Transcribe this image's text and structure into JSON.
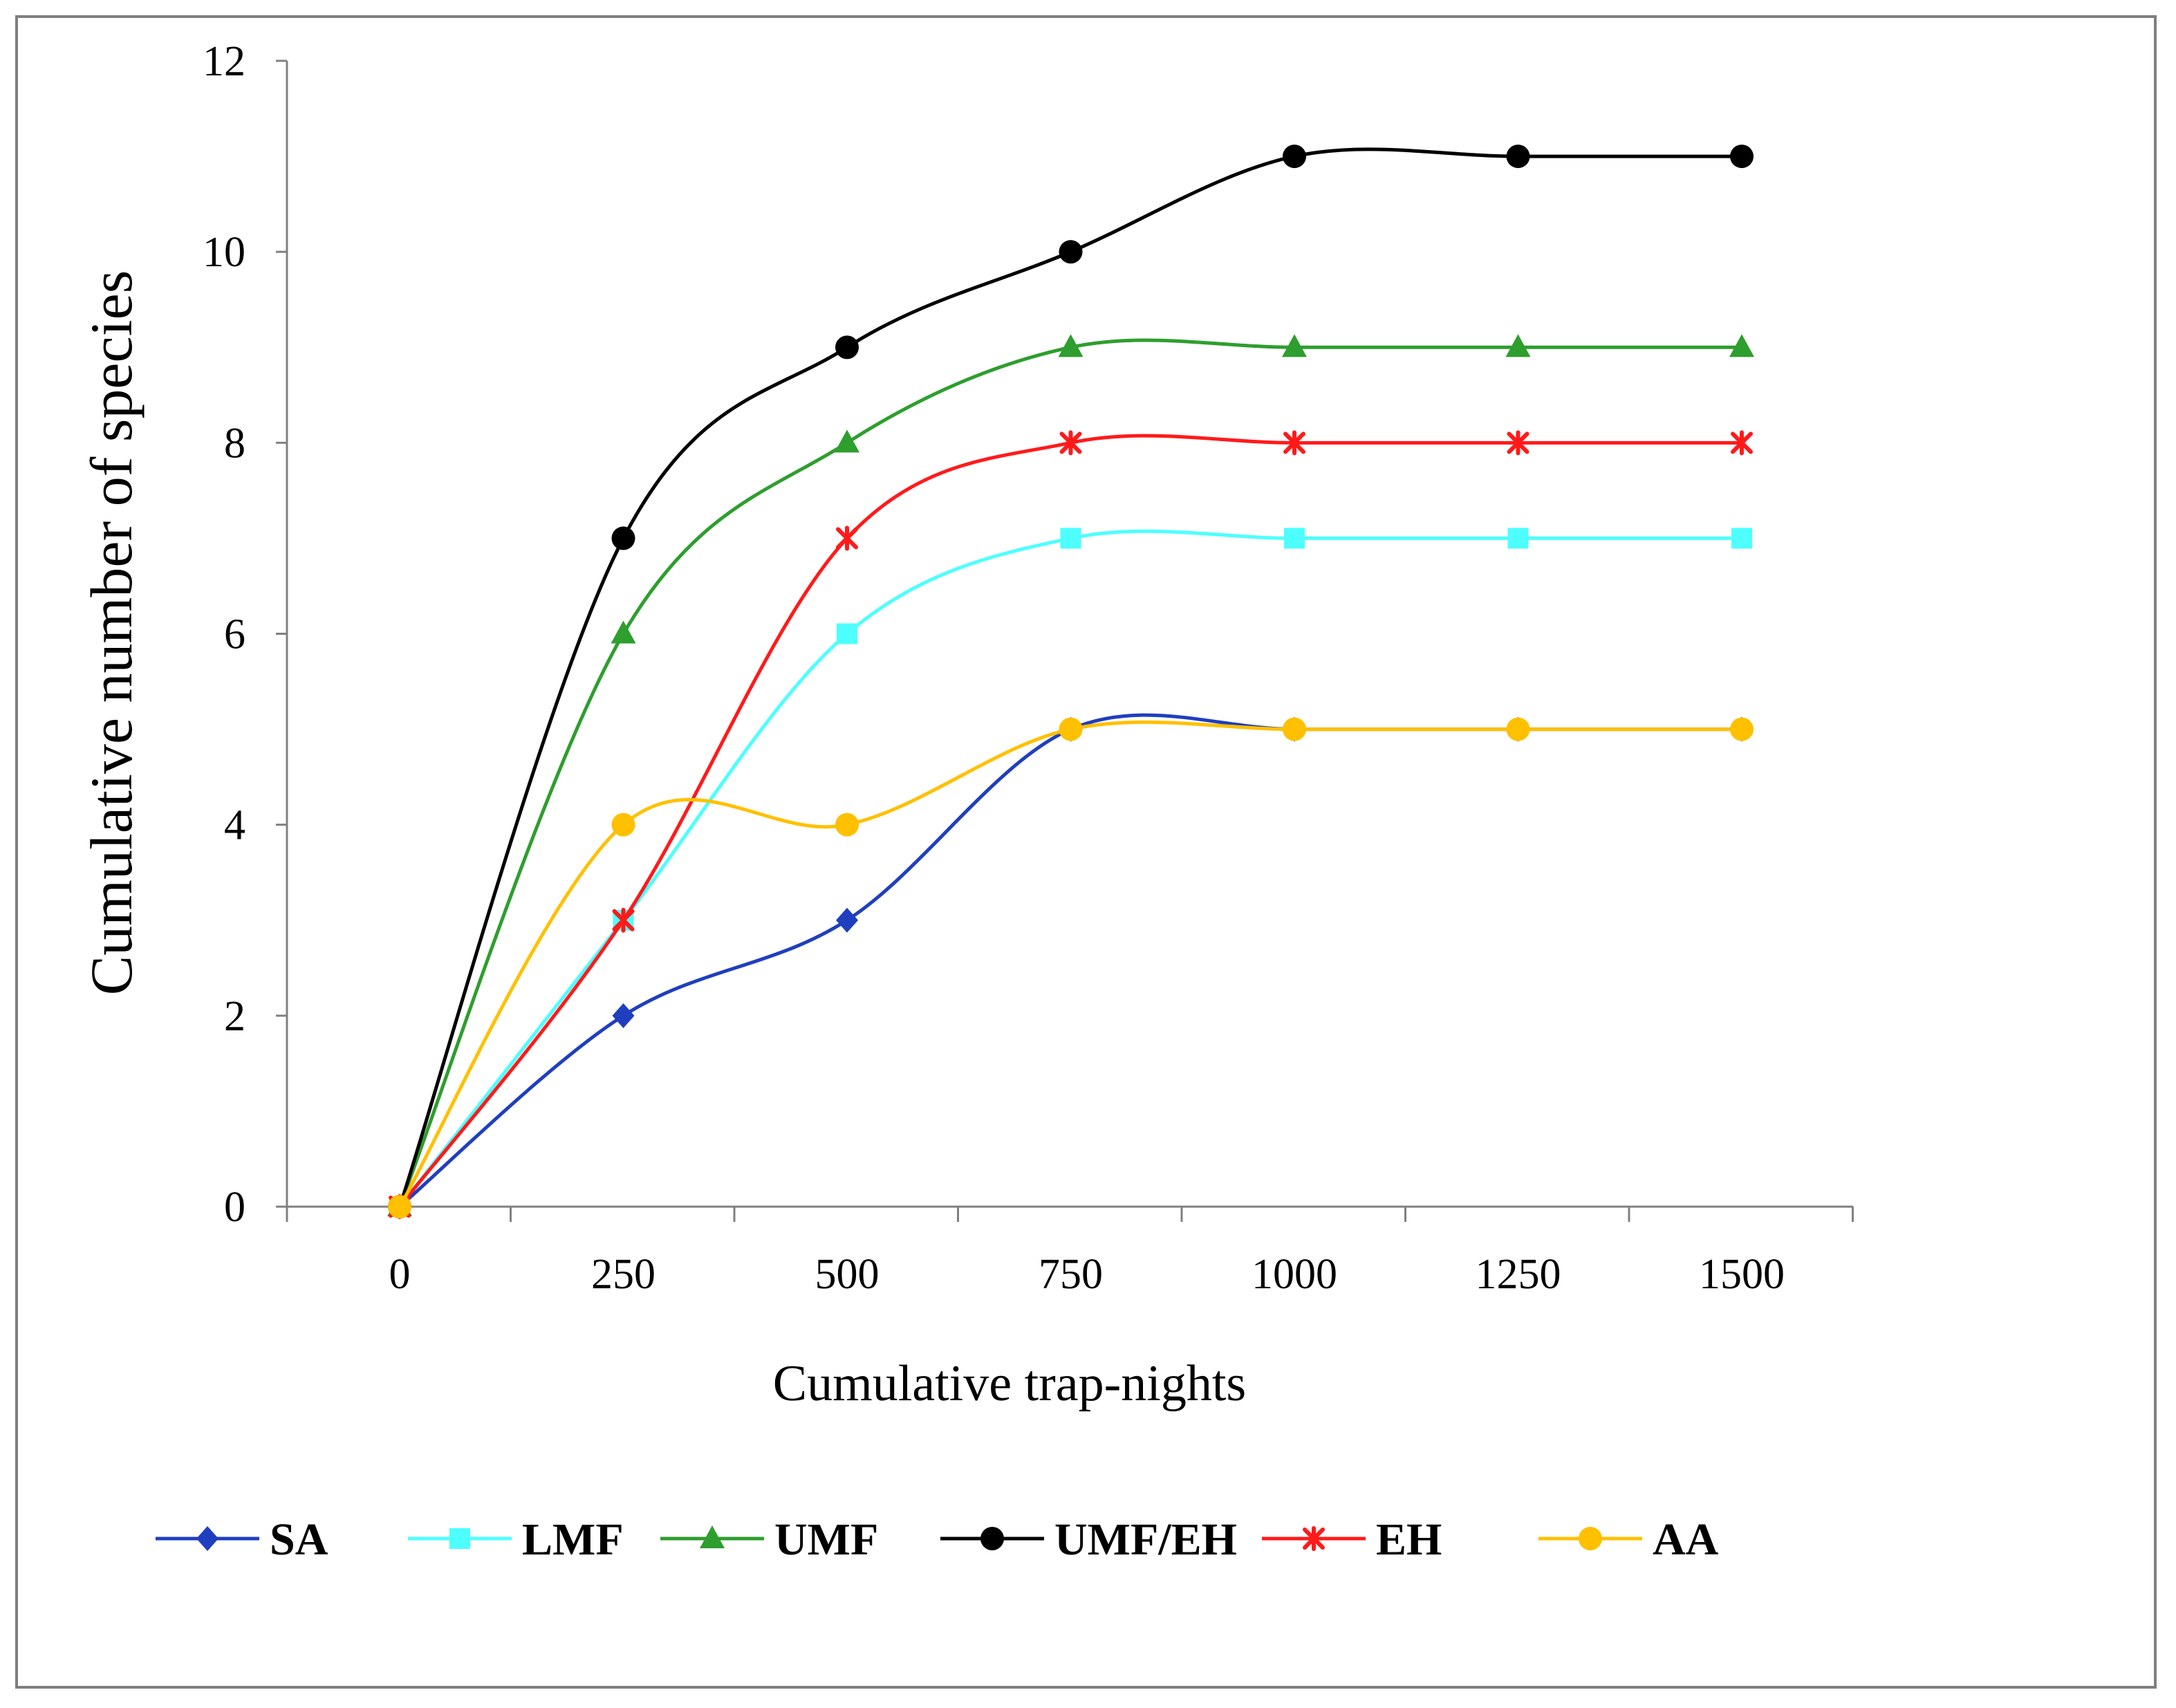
{
  "chart_data": {
    "type": "line",
    "title": "",
    "xlabel": "Cumulative trap-nights",
    "ylabel": "Cumulative number of species",
    "x": [
      0,
      250,
      500,
      750,
      1000,
      1250,
      1500
    ],
    "xticks": [
      "0",
      "250",
      "500",
      "750",
      "1000",
      "1250",
      "1500"
    ],
    "ylim": [
      0,
      12
    ],
    "yticks": [
      "0",
      "2",
      "4",
      "6",
      "8",
      "10",
      "12"
    ],
    "grid": false,
    "legend_position": "bottom",
    "smooth": true,
    "series": [
      {
        "name": "SA",
        "values": [
          0,
          2,
          3,
          5,
          5,
          5,
          5
        ],
        "color": "#1f3fbf",
        "marker": "diamond"
      },
      {
        "name": "LMF",
        "values": [
          0,
          3,
          6,
          7,
          7,
          7,
          7
        ],
        "color": "#4dffff",
        "marker": "square"
      },
      {
        "name": "UMF",
        "values": [
          0,
          6,
          8,
          9,
          9,
          9,
          9
        ],
        "color": "#2e9e2e",
        "marker": "triangle"
      },
      {
        "name": "UMF/EH",
        "values": [
          0,
          7,
          9,
          10,
          11,
          11,
          11
        ],
        "color": "#000000",
        "marker": "circle"
      },
      {
        "name": "EH",
        "values": [
          0,
          3,
          7,
          8,
          8,
          8,
          8
        ],
        "color": "#ff1a1a",
        "marker": "star"
      },
      {
        "name": "AA",
        "values": [
          0,
          4,
          4,
          5,
          5,
          5,
          5
        ],
        "color": "#ffc000",
        "marker": "circle"
      }
    ]
  }
}
